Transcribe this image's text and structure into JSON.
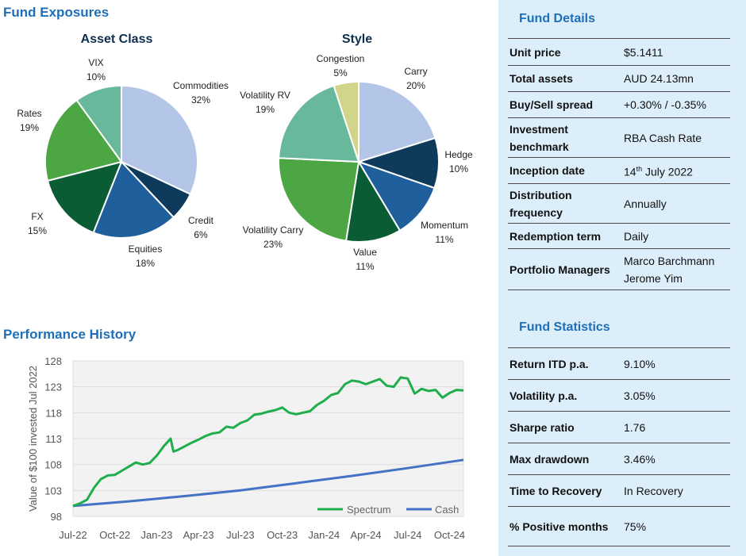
{
  "headings": {
    "fund_exposures": "Fund Exposures",
    "asset_class": "Asset Class",
    "style": "Style",
    "performance_history": "Performance History"
  },
  "fund_details": {
    "title": "Fund Details",
    "unit_price_label": "Unit price",
    "unit_price": "$5.1411",
    "total_assets_label": "Total assets",
    "total_assets": "AUD 24.13mn",
    "spread_label": "Buy/Sell spread",
    "spread": "+0.30% / -0.35%",
    "benchmark_label": "Investment benchmark",
    "benchmark": "RBA Cash Rate",
    "inception_label": "Inception date",
    "inception_day": "14",
    "inception_suffix": "th",
    "inception_rest": " July 2022",
    "distribution_label": "Distribution frequency",
    "distribution": "Annually",
    "redemption_label": "Redemption term",
    "redemption": "Daily",
    "managers_label": "Portfolio Managers",
    "manager_1": "Marco Barchmann",
    "manager_2": "Jerome Yim"
  },
  "fund_statistics": {
    "title": "Fund Statistics",
    "return_label": "Return ITD p.a.",
    "return": "9.10%",
    "volatility_label": "Volatility p.a.",
    "volatility": "3.05%",
    "sharpe_label": "Sharpe ratio",
    "sharpe": "1.76",
    "drawdown_label": "Max drawdown",
    "drawdown": "3.46%",
    "recovery_label": "Time to Recovery",
    "recovery": "In Recovery",
    "positive_label": "% Positive months",
    "positive": "75%"
  },
  "chart_data": [
    {
      "type": "pie",
      "title": "Asset Class",
      "categories": [
        "Commodities",
        "Credit",
        "Equities",
        "FX",
        "Rates",
        "VIX"
      ],
      "values": [
        32,
        6,
        18,
        15,
        19,
        10
      ],
      "labels": [
        "32%",
        "6%",
        "18%",
        "15%",
        "19%",
        "10%"
      ],
      "colors": [
        "#b4c6e7",
        "#0e3a5c",
        "#1f5f9c",
        "#0a5c35",
        "#4da644",
        "#68b89b"
      ]
    },
    {
      "type": "pie",
      "title": "Style",
      "categories": [
        "Carry",
        "Hedge",
        "Momentum",
        "Value",
        "Volatility Carry",
        "Volatility RV",
        "Congestion"
      ],
      "values": [
        20,
        10,
        11,
        11,
        23,
        19,
        5
      ],
      "labels": [
        "20%",
        "10%",
        "11%",
        "11%",
        "23%",
        "19%",
        "5%"
      ],
      "colors": [
        "#b4c6e7",
        "#0e3a5c",
        "#1f5f9c",
        "#0a5c35",
        "#4da644",
        "#68b89b",
        "#d0d58a"
      ]
    },
    {
      "type": "line",
      "title": "Performance History",
      "ylabel": "Value of $100 invested Jul 2022",
      "xlabel": "",
      "ylim": [
        98,
        128
      ],
      "yticks": [
        98,
        103,
        108,
        113,
        118,
        123,
        128
      ],
      "xtick_labels": [
        "Jul-22",
        "Oct-22",
        "Jan-23",
        "Apr-23",
        "Jul-23",
        "Oct-23",
        "Jan-24",
        "Apr-24",
        "Jul-24",
        "Oct-24"
      ],
      "x_months": [
        0,
        3,
        6,
        9,
        12,
        15,
        18,
        21,
        24,
        27
      ],
      "xlim": [
        0,
        28
      ],
      "legend_position": "bottom-right",
      "series": [
        {
          "name": "Spectrum",
          "color": "#1fae4b",
          "x": [
            0,
            0.5,
            1,
            1.5,
            2,
            2.5,
            3,
            3.5,
            4,
            4.5,
            5,
            5.5,
            6,
            6.5,
            7,
            7.2,
            7.5,
            8,
            8.5,
            9,
            9.5,
            10,
            10.5,
            11,
            11.5,
            12,
            12.5,
            13,
            13.5,
            14,
            14.5,
            15,
            15.5,
            16,
            16.5,
            17,
            17.5,
            18,
            18.5,
            19,
            19.5,
            20,
            20.5,
            21,
            21.5,
            22,
            22.5,
            23,
            23.5,
            24,
            24.5,
            25,
            25.5,
            26,
            26.5,
            27,
            27.5,
            28
          ],
          "values": [
            100.0,
            100.5,
            101.2,
            103.5,
            105.2,
            105.9,
            106.0,
            106.8,
            107.6,
            108.4,
            108.0,
            108.3,
            109.7,
            111.5,
            113.0,
            110.5,
            110.8,
            111.5,
            112.2,
            112.8,
            113.5,
            114.0,
            114.2,
            115.3,
            115.1,
            116.0,
            116.5,
            117.6,
            117.8,
            118.2,
            118.5,
            119.0,
            118.0,
            117.7,
            118.0,
            118.3,
            119.5,
            120.3,
            121.4,
            121.8,
            123.5,
            124.2,
            124.0,
            123.5,
            124.0,
            124.5,
            123.2,
            123.0,
            124.8,
            124.6,
            121.7,
            122.6,
            122.2,
            122.4,
            120.9,
            121.8,
            122.4,
            122.3
          ]
        },
        {
          "name": "Cash",
          "color": "#4472c4",
          "x": [
            0,
            4,
            8,
            12,
            16,
            20,
            24,
            28
          ],
          "values": [
            100.0,
            100.9,
            101.9,
            103.0,
            104.4,
            105.8,
            107.3,
            108.9
          ]
        }
      ]
    }
  ]
}
